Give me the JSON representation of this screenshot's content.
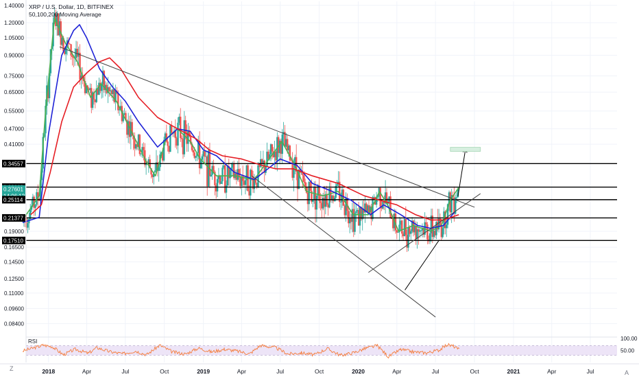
{
  "header": {
    "symbol_line": "XRP / U.S. Dollar, 1D, BITFINEX",
    "indicator_line": "50,100,200 Moving Average"
  },
  "corner": {
    "left_label": "Z",
    "right_label": "A"
  },
  "rsi": {
    "label": "RSI",
    "tick_top": "100.00",
    "tick_mid": "50.00"
  },
  "colors": {
    "candle_up": "#26a69a",
    "candle_down": "#ef5350",
    "ma50": "#4caf50",
    "ma100": "#1e22d6",
    "ma200": "#e51c23",
    "rsi_line": "#f57c3a",
    "rsi_band": "#ede4f7",
    "trendline": "#444444",
    "level_line": "#000000",
    "target_box": "#d7efe0",
    "price_tag_green": "#26a69a",
    "price_tag_black": "#000000"
  },
  "chart_data": {
    "type": "line",
    "title": "XRP / U.S. Dollar, 1D, BITFINEX",
    "subtitle": "50,100,200 Moving Average",
    "xlabel": "",
    "ylabel": "",
    "y_scale": "log",
    "ylim": [
      0.075,
      1.45
    ],
    "x_ticks": [
      "2018",
      "Apr",
      "Jul",
      "Oct",
      "2019",
      "Apr",
      "Jul",
      "Oct",
      "2020",
      "Apr",
      "Jul",
      "Oct",
      "2021",
      "Apr",
      "Jul"
    ],
    "y_ticks": [
      "1.40000",
      "1.20000",
      "1.05000",
      "0.90000",
      "0.75000",
      "0.65000",
      "0.55000",
      "0.47000",
      "0.41000",
      "0.19000",
      "0.16500",
      "0.14500",
      "0.12500",
      "0.11000",
      "0.09600",
      "0.08400"
    ],
    "price_tags": [
      {
        "value": "0.34557",
        "style": "black"
      },
      {
        "value": "0.28069",
        "style": "black"
      },
      {
        "value": "0.27601",
        "style": "green"
      },
      {
        "value": "14:06:12",
        "style": "green"
      },
      {
        "value": "0.25114",
        "style": "black"
      },
      {
        "value": "0.21377",
        "style": "black"
      },
      {
        "value": "0.17510",
        "style": "black"
      }
    ],
    "horizontal_levels": [
      0.34557,
      0.28069,
      0.25114,
      0.21377,
      0.1751
    ],
    "series": [
      {
        "name": "50",
        "points": [
          [
            "2017-11-01",
            0.21
          ],
          [
            "2017-12-10",
            0.26
          ],
          [
            "2017-12-25",
            0.55
          ],
          [
            "2018-01-15",
            1.25
          ],
          [
            "2018-02-10",
            1.0
          ],
          [
            "2018-03-10",
            0.85
          ],
          [
            "2018-04-10",
            0.62
          ],
          [
            "2018-05-05",
            0.7
          ],
          [
            "2018-06-10",
            0.6
          ],
          [
            "2018-07-15",
            0.46
          ],
          [
            "2018-08-20",
            0.35
          ],
          [
            "2018-09-10",
            0.31
          ],
          [
            "2018-10-05",
            0.43
          ],
          [
            "2018-11-01",
            0.47
          ],
          [
            "2018-12-01",
            0.42
          ],
          [
            "2018-12-25",
            0.36
          ],
          [
            "2019-02-01",
            0.31
          ],
          [
            "2019-03-15",
            0.31
          ],
          [
            "2019-05-01",
            0.3
          ],
          [
            "2019-06-10",
            0.37
          ],
          [
            "2019-07-05",
            0.42
          ],
          [
            "2019-08-01",
            0.35
          ],
          [
            "2019-09-01",
            0.27
          ],
          [
            "2019-10-10",
            0.26
          ],
          [
            "2019-11-15",
            0.27
          ],
          [
            "2019-12-20",
            0.22
          ],
          [
            "2020-01-25",
            0.22
          ],
          [
            "2020-02-20",
            0.27
          ],
          [
            "2020-03-10",
            0.24
          ],
          [
            "2020-04-05",
            0.19
          ],
          [
            "2020-05-10",
            0.2
          ],
          [
            "2020-06-20",
            0.19
          ],
          [
            "2020-07-15",
            0.2
          ],
          [
            "2020-08-05",
            0.25
          ],
          [
            "2020-08-25",
            0.28
          ]
        ]
      },
      {
        "name": "100",
        "points": [
          [
            "2017-11-01",
            0.205
          ],
          [
            "2017-12-10",
            0.215
          ],
          [
            "2018-01-01",
            0.45
          ],
          [
            "2018-02-01",
            0.9
          ],
          [
            "2018-03-01",
            1.12
          ],
          [
            "2018-03-15",
            1.18
          ],
          [
            "2018-04-01",
            1.05
          ],
          [
            "2018-05-01",
            0.8
          ],
          [
            "2018-06-01",
            0.68
          ],
          [
            "2018-07-01",
            0.6
          ],
          [
            "2018-08-01",
            0.5
          ],
          [
            "2018-09-15",
            0.4
          ],
          [
            "2018-11-01",
            0.47
          ],
          [
            "2018-12-01",
            0.46
          ],
          [
            "2019-01-01",
            0.39
          ],
          [
            "2019-02-01",
            0.37
          ],
          [
            "2019-03-15",
            0.32
          ],
          [
            "2019-05-01",
            0.3
          ],
          [
            "2019-07-01",
            0.36
          ],
          [
            "2019-08-10",
            0.34
          ],
          [
            "2019-09-15",
            0.29
          ],
          [
            "2019-11-01",
            0.27
          ],
          [
            "2019-12-15",
            0.25
          ],
          [
            "2020-01-30",
            0.22
          ],
          [
            "2020-03-01",
            0.24
          ],
          [
            "2020-04-10",
            0.22
          ],
          [
            "2020-05-20",
            0.2
          ],
          [
            "2020-06-20",
            0.195
          ],
          [
            "2020-07-20",
            0.2
          ],
          [
            "2020-08-15",
            0.225
          ]
        ]
      },
      {
        "name": "200",
        "points": [
          [
            "2017-11-20",
            0.22
          ],
          [
            "2017-12-15",
            0.24
          ],
          [
            "2018-01-05",
            0.32
          ],
          [
            "2018-02-01",
            0.5
          ],
          [
            "2018-03-01",
            0.68
          ],
          [
            "2018-04-01",
            0.77
          ],
          [
            "2018-05-01",
            0.85
          ],
          [
            "2018-05-25",
            0.88
          ],
          [
            "2018-06-20",
            0.8
          ],
          [
            "2018-08-01",
            0.62
          ],
          [
            "2018-09-15",
            0.52
          ],
          [
            "2018-11-01",
            0.47
          ],
          [
            "2018-12-15",
            0.43
          ],
          [
            "2019-01-15",
            0.39
          ],
          [
            "2019-02-15",
            0.37
          ],
          [
            "2019-04-01",
            0.36
          ],
          [
            "2019-05-20",
            0.34
          ],
          [
            "2019-06-20",
            0.33
          ],
          [
            "2019-08-01",
            0.33
          ],
          [
            "2019-09-15",
            0.31
          ],
          [
            "2019-11-15",
            0.29
          ],
          [
            "2020-01-15",
            0.26
          ],
          [
            "2020-02-20",
            0.25
          ],
          [
            "2020-04-01",
            0.24
          ],
          [
            "2020-05-15",
            0.22
          ],
          [
            "2020-06-20",
            0.21
          ],
          [
            "2020-07-20",
            0.21
          ],
          [
            "2020-08-25",
            0.22
          ]
        ]
      }
    ],
    "rsi_range": [
      0,
      100
    ],
    "rsi_band": [
      30,
      70
    ],
    "rsi_points": [
      [
        "2017-11-01",
        48
      ],
      [
        "2017-12-20",
        72
      ],
      [
        "2018-01-10",
        66
      ],
      [
        "2018-02-05",
        32
      ],
      [
        "2018-03-05",
        55
      ],
      [
        "2018-04-05",
        38
      ],
      [
        "2018-04-25",
        62
      ],
      [
        "2018-05-25",
        45
      ],
      [
        "2018-06-25",
        36
      ],
      [
        "2018-07-25",
        48
      ],
      [
        "2018-08-20",
        32
      ],
      [
        "2018-09-20",
        72
      ],
      [
        "2018-10-20",
        44
      ],
      [
        "2018-11-20",
        35
      ],
      [
        "2018-12-20",
        60
      ],
      [
        "2019-01-20",
        44
      ],
      [
        "2019-02-20",
        55
      ],
      [
        "2019-03-20",
        48
      ],
      [
        "2019-04-20",
        36
      ],
      [
        "2019-05-15",
        71
      ],
      [
        "2019-06-20",
        62
      ],
      [
        "2019-07-20",
        35
      ],
      [
        "2019-08-20",
        40
      ],
      [
        "2019-09-20",
        32
      ],
      [
        "2019-10-20",
        58
      ],
      [
        "2019-11-20",
        30
      ],
      [
        "2019-12-20",
        40
      ],
      [
        "2020-01-20",
        60
      ],
      [
        "2020-02-15",
        70
      ],
      [
        "2020-03-12",
        24
      ],
      [
        "2020-04-10",
        54
      ],
      [
        "2020-05-10",
        44
      ],
      [
        "2020-06-10",
        40
      ],
      [
        "2020-07-10",
        52
      ],
      [
        "2020-07-28",
        74
      ],
      [
        "2020-08-12",
        68
      ],
      [
        "2020-08-27",
        52
      ]
    ],
    "annotations": {
      "trendlines": [
        {
          "from": [
            "2018-01-27",
            0.97
          ],
          "to": [
            "2020-10-01",
            0.235
          ]
        },
        {
          "from": [
            "2019-04-25",
            0.31
          ],
          "to": [
            "2020-07-01",
            0.089
          ]
        },
        {
          "from": [
            "2020-01-25",
            0.132
          ],
          "to": [
            "2020-10-15",
            0.265
          ]
        }
      ],
      "arrows": [
        {
          "from": [
            "2020-04-20",
            0.113
          ],
          "to": [
            "2020-07-10",
            0.176
          ]
        },
        {
          "from": [
            "2020-08-23",
            0.259
          ],
          "to": [
            "2020-09-10",
            0.395
          ]
        }
      ],
      "target_box": {
        "x": [
          "2020-08-05",
          "2020-10-15"
        ],
        "y": [
          0.385,
          0.399
        ]
      }
    }
  }
}
